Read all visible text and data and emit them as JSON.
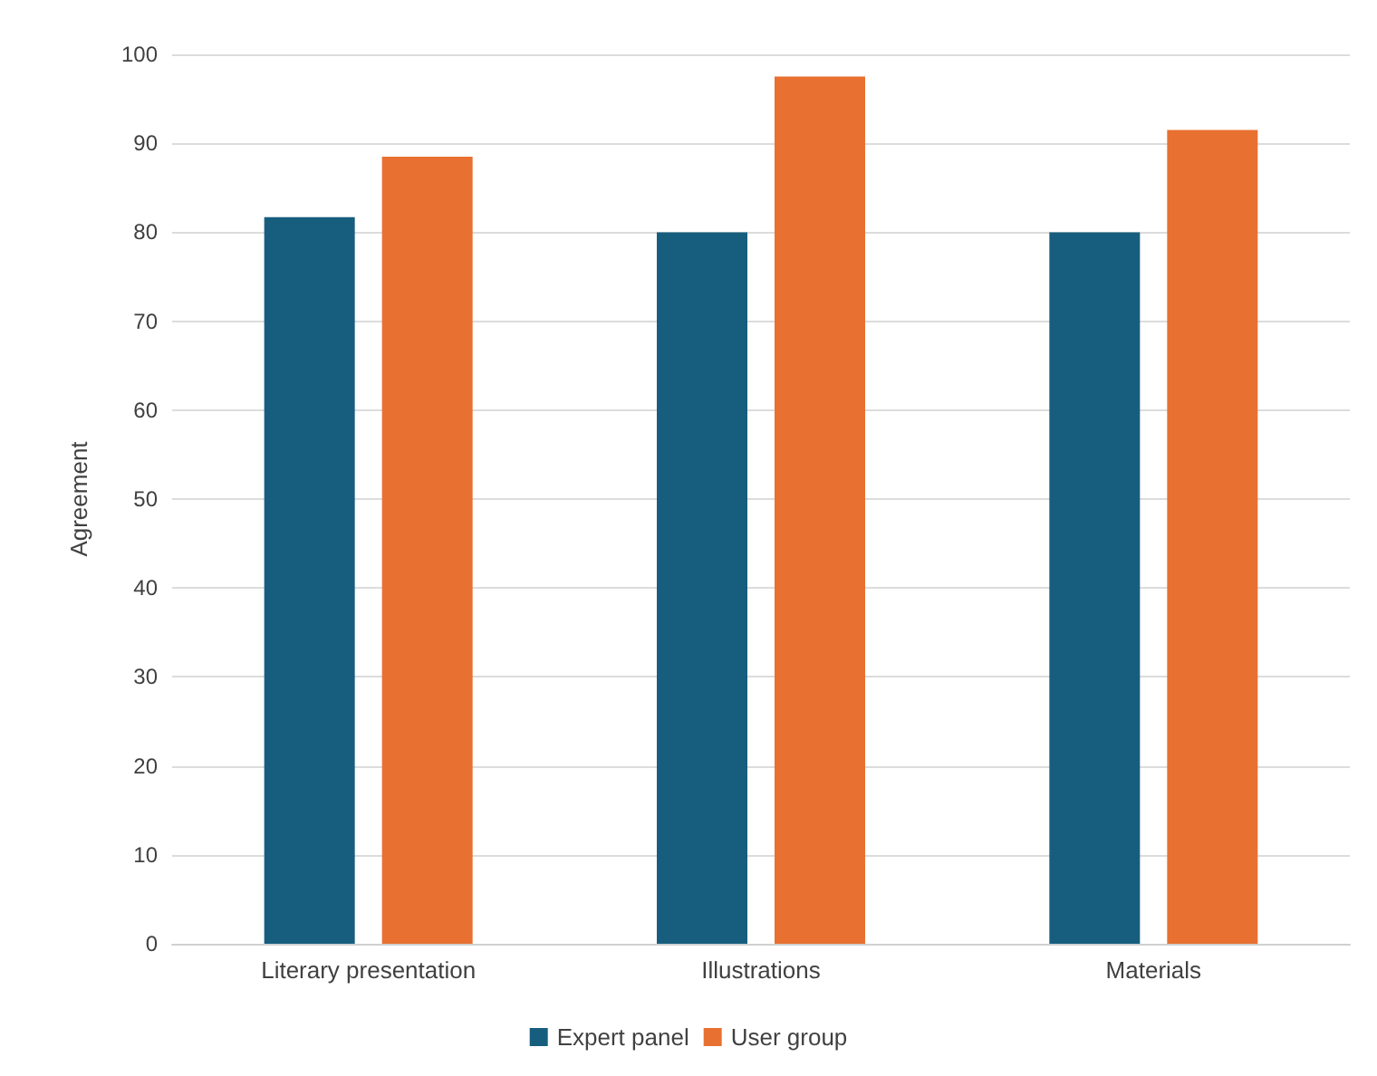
{
  "chart_data": {
    "type": "bar",
    "ylabel": "Agreement",
    "categories": [
      "Literary presentation",
      "Illustrations",
      "Materials"
    ],
    "series": [
      {
        "name": "Expert panel",
        "color": "#175e7e",
        "values": [
          81.7,
          80,
          80
        ]
      },
      {
        "name": "User group",
        "color": "#e87030",
        "values": [
          88.5,
          97.5,
          91.5
        ]
      }
    ],
    "ylim": [
      0,
      100
    ],
    "yticks": [
      0,
      10,
      20,
      30,
      40,
      50,
      60,
      70,
      80,
      90,
      100
    ],
    "grid": "y",
    "legend": "bottom"
  }
}
